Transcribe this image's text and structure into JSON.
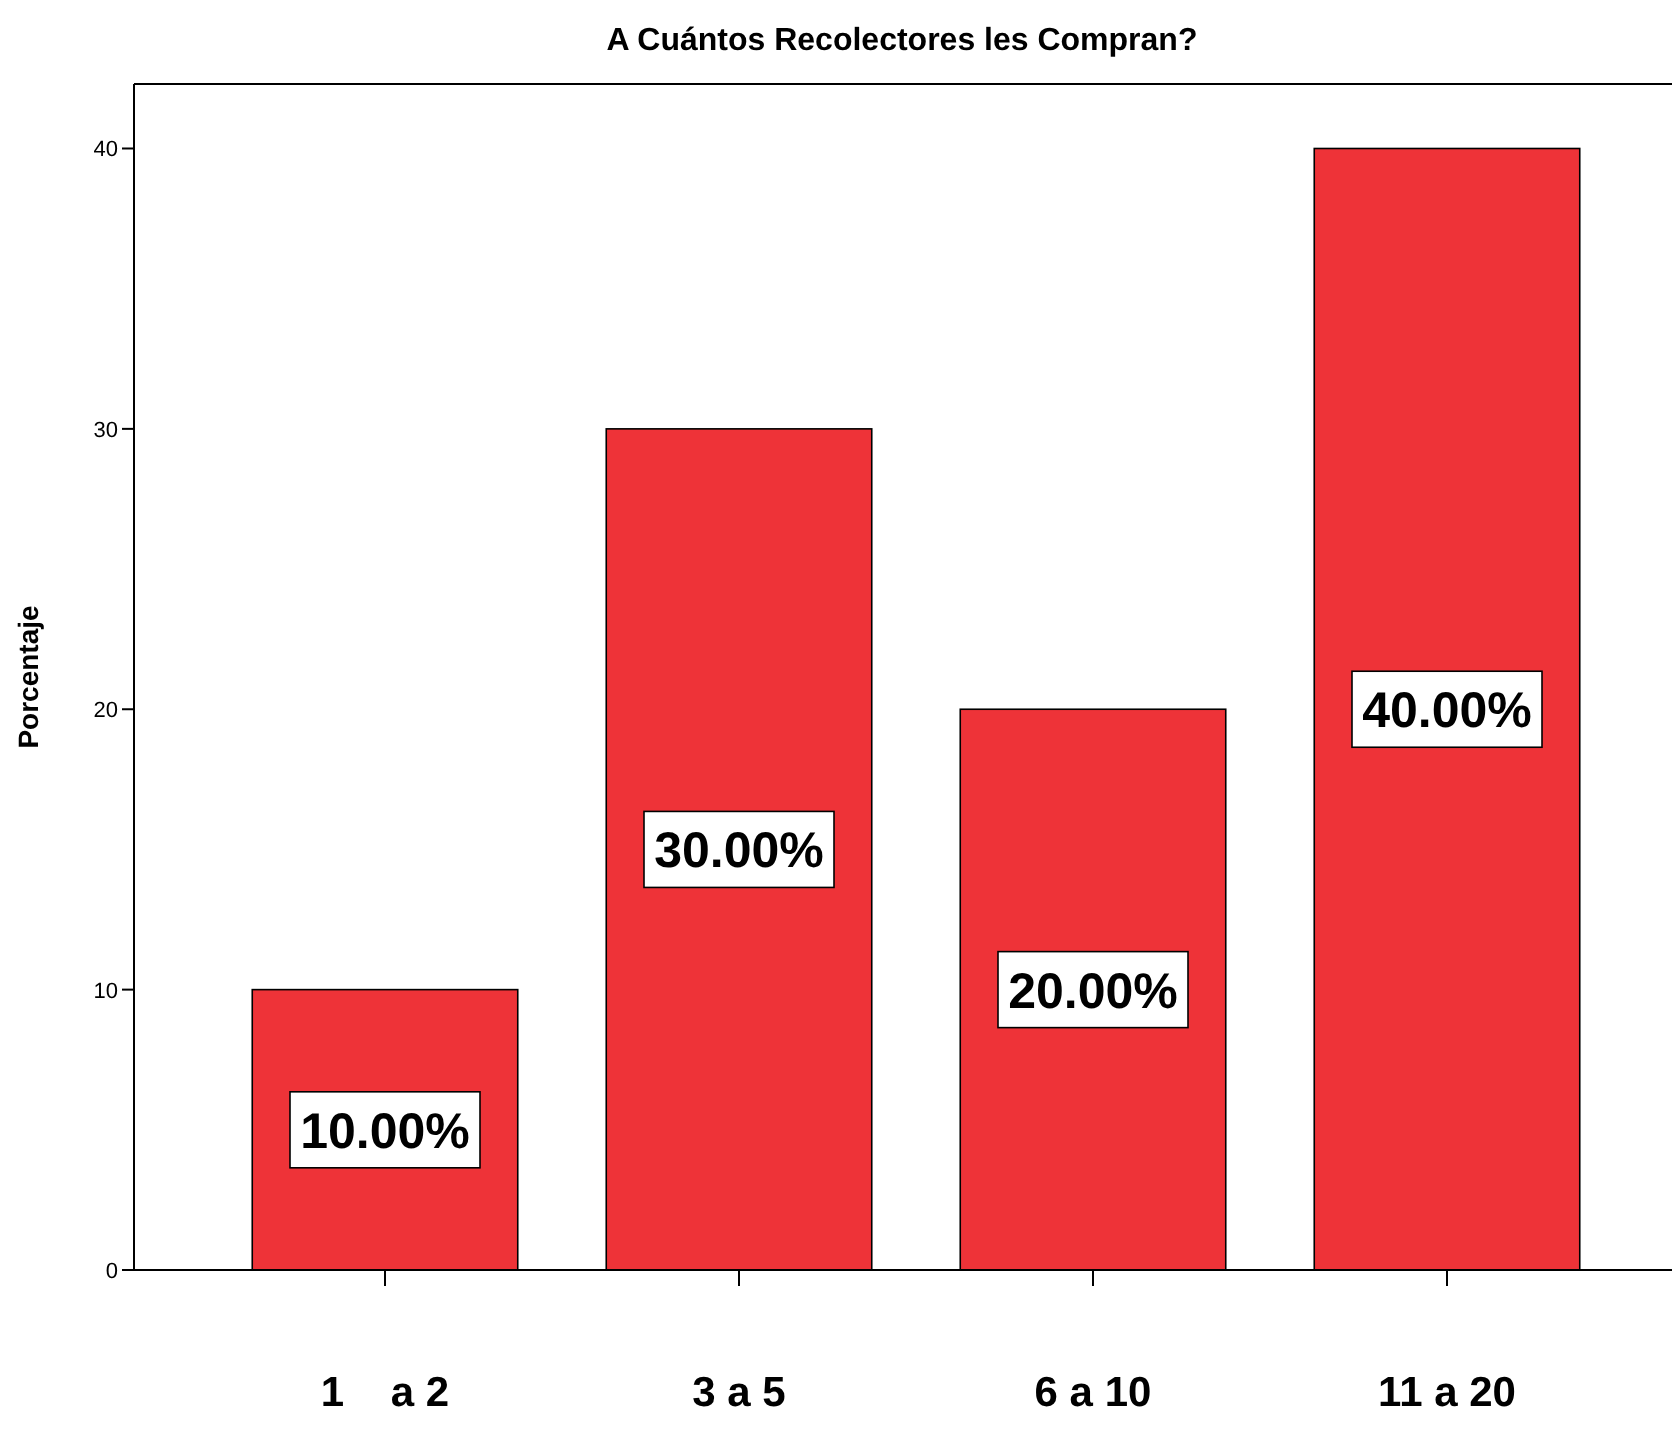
{
  "chart_data": {
    "type": "bar",
    "title": "A Cuántos Recolectores les Compran?",
    "ylabel": "Porcentaje",
    "categories": [
      "1    a 2",
      "3 a 5",
      "6 a 10",
      "11 a 20"
    ],
    "values": [
      10,
      30,
      20,
      40
    ],
    "value_labels": [
      "10.00%",
      "30.00%",
      "20.00%",
      "40.00%"
    ],
    "color": "#ee3338",
    "ylim": [
      0,
      42.3
    ],
    "yticks": [
      0,
      10,
      20,
      30,
      40
    ],
    "grid": false
  }
}
